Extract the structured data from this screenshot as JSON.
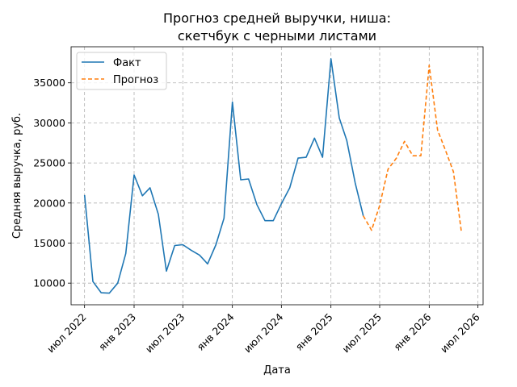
{
  "chart_data": {
    "type": "line",
    "title_lines": [
      "Прогноз средней выручки, ниша:",
      "скетчбук с черными листами"
    ],
    "xlabel": "Дата",
    "ylabel": "Средняя выручка, руб.",
    "x_ticks": [
      {
        "date": "2022-07-01",
        "label": "июл 2022"
      },
      {
        "date": "2023-01-01",
        "label": "янв 2023"
      },
      {
        "date": "2023-07-01",
        "label": "июл 2023"
      },
      {
        "date": "2024-01-01",
        "label": "янв 2024"
      },
      {
        "date": "2024-07-01",
        "label": "июл 2024"
      },
      {
        "date": "2025-01-01",
        "label": "янв 2025"
      },
      {
        "date": "2025-07-01",
        "label": "июл 2025"
      },
      {
        "date": "2026-01-01",
        "label": "янв 2026"
      },
      {
        "date": "2026-07-01",
        "label": "июл 2026"
      }
    ],
    "y_ticks": [
      {
        "value": 10000,
        "label": "10000"
      },
      {
        "value": 15000,
        "label": "15000"
      },
      {
        "value": 20000,
        "label": "20000"
      },
      {
        "value": 25000,
        "label": "25000"
      },
      {
        "value": 30000,
        "label": "30000"
      },
      {
        "value": 35000,
        "label": "35000"
      }
    ],
    "xlim": [
      "2022-05-12",
      "2026-07-20"
    ],
    "ylim": [
      7300,
      39500
    ],
    "grid": true,
    "legend_position": "top-left",
    "series": [
      {
        "name": "Факт",
        "style": "solid",
        "color": "#1f77b4",
        "points": [
          [
            "2022-07-01",
            21000
          ],
          [
            "2022-08-01",
            10200
          ],
          [
            "2022-09-01",
            8800
          ],
          [
            "2022-10-01",
            8750
          ],
          [
            "2022-11-01",
            10000
          ],
          [
            "2022-12-01",
            13700
          ],
          [
            "2023-01-01",
            23500
          ],
          [
            "2023-02-01",
            20900
          ],
          [
            "2023-03-01",
            21900
          ],
          [
            "2023-04-01",
            18600
          ],
          [
            "2023-05-01",
            11500
          ],
          [
            "2023-06-01",
            14700
          ],
          [
            "2023-07-01",
            14800
          ],
          [
            "2023-08-01",
            14100
          ],
          [
            "2023-09-01",
            13500
          ],
          [
            "2023-10-01",
            12400
          ],
          [
            "2023-11-01",
            14800
          ],
          [
            "2023-12-01",
            18100
          ],
          [
            "2024-01-01",
            32600
          ],
          [
            "2024-02-01",
            22900
          ],
          [
            "2024-03-01",
            23000
          ],
          [
            "2024-04-01",
            19800
          ],
          [
            "2024-05-01",
            17800
          ],
          [
            "2024-06-01",
            17800
          ],
          [
            "2024-07-01",
            19900
          ],
          [
            "2024-08-01",
            21900
          ],
          [
            "2024-09-01",
            25600
          ],
          [
            "2024-10-01",
            25700
          ],
          [
            "2024-11-01",
            28100
          ],
          [
            "2024-12-01",
            25700
          ],
          [
            "2025-01-01",
            38000
          ],
          [
            "2025-02-01",
            30600
          ],
          [
            "2025-03-01",
            27800
          ],
          [
            "2025-04-01",
            22500
          ],
          [
            "2025-05-01",
            18400
          ]
        ]
      },
      {
        "name": "Прогноз",
        "style": "dashed",
        "color": "#ff7f0e",
        "points": [
          [
            "2025-05-01",
            18400
          ],
          [
            "2025-06-01",
            16600
          ],
          [
            "2025-07-01",
            19700
          ],
          [
            "2025-08-01",
            24200
          ],
          [
            "2025-09-01",
            25600
          ],
          [
            "2025-10-01",
            27700
          ],
          [
            "2025-11-01",
            25900
          ],
          [
            "2025-12-01",
            25900
          ],
          [
            "2026-01-01",
            37200
          ],
          [
            "2026-02-01",
            29100
          ],
          [
            "2026-03-01",
            26700
          ],
          [
            "2026-04-01",
            23900
          ],
          [
            "2026-05-01",
            16300
          ]
        ]
      }
    ]
  }
}
